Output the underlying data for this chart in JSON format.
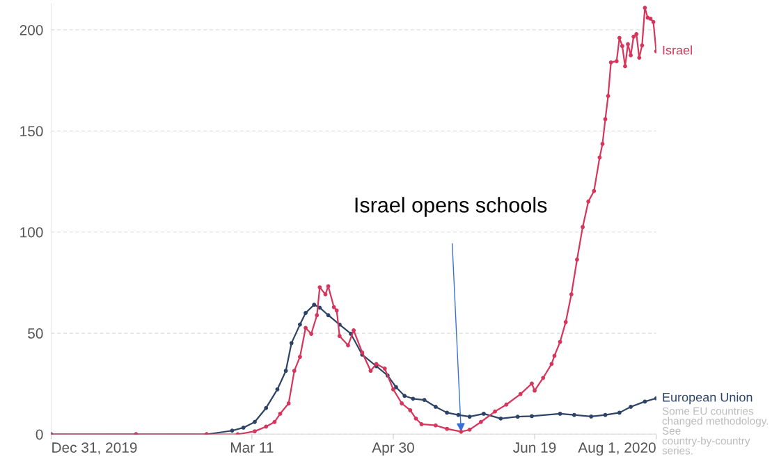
{
  "chart_data": {
    "type": "line",
    "xlim": [
      "2019-12-31",
      "2020-08-01"
    ],
    "xticks": [
      {
        "value": "2019-12-31",
        "label": "Dec 31, 2019"
      },
      {
        "value": "2020-03-11",
        "label": "Mar 11"
      },
      {
        "value": "2020-04-30",
        "label": "Apr 30"
      },
      {
        "value": "2020-06-19",
        "label": "Jun 19"
      },
      {
        "value": "2020-08-01",
        "label": "Aug 1, 2020"
      }
    ],
    "ylim": [
      0,
      213
    ],
    "yticks": [
      0,
      50,
      100,
      150,
      200
    ],
    "grid": "y",
    "marker": "circle",
    "line_style": "solid",
    "legend": false,
    "series": [
      {
        "name": "Israel",
        "color": "#d6365c",
        "x": [
          "2019-12-31",
          "2020-01-30",
          "2020-02-24",
          "2020-03-06",
          "2020-03-12",
          "2020-03-16",
          "2020-03-19",
          "2020-03-21",
          "2020-03-24",
          "2020-03-26",
          "2020-03-28",
          "2020-03-30",
          "2020-04-01",
          "2020-04-03",
          "2020-04-04",
          "2020-04-06",
          "2020-04-07",
          "2020-04-09",
          "2020-04-10",
          "2020-04-11",
          "2020-04-14",
          "2020-04-16",
          "2020-04-19",
          "2020-04-22",
          "2020-04-24",
          "2020-04-27",
          "2020-04-30",
          "2020-05-03",
          "2020-05-06",
          "2020-05-08",
          "2020-05-10",
          "2020-05-15",
          "2020-05-19",
          "2020-05-24",
          "2020-05-27",
          "2020-05-31",
          "2020-06-05",
          "2020-06-09",
          "2020-06-14",
          "2020-06-18",
          "2020-06-19",
          "2020-06-22",
          "2020-06-25",
          "2020-06-26",
          "2020-06-28",
          "2020-06-30",
          "2020-07-02",
          "2020-07-04",
          "2020-07-06",
          "2020-07-08",
          "2020-07-10",
          "2020-07-12",
          "2020-07-13",
          "2020-07-14",
          "2020-07-15",
          "2020-07-16",
          "2020-07-18",
          "2020-07-19",
          "2020-07-20",
          "2020-07-21",
          "2020-07-22",
          "2020-07-23",
          "2020-07-24",
          "2020-07-25",
          "2020-07-26",
          "2020-07-27",
          "2020-07-28",
          "2020-07-29",
          "2020-07-30",
          "2020-07-31",
          "2020-08-01"
        ],
        "values": [
          0,
          0,
          0,
          0,
          1.5,
          3.8,
          6.1,
          10.2,
          15.3,
          31.4,
          38.3,
          52.6,
          49.7,
          58.9,
          72.7,
          69.2,
          73.2,
          62.9,
          61.2,
          48.6,
          44.0,
          51.4,
          40.5,
          31.4,
          34.8,
          32.5,
          22.2,
          15.3,
          11.9,
          7.8,
          5.0,
          4.4,
          2.7,
          1.3,
          2.3,
          6.1,
          11.3,
          14.7,
          19.9,
          25.1,
          21.6,
          27.9,
          34.8,
          38.8,
          45.7,
          55.5,
          69.2,
          86.4,
          102.5,
          115.1,
          120.3,
          136.9,
          143.6,
          155.8,
          167.3,
          183.9,
          184.5,
          196,
          192,
          182,
          192.9,
          187.4,
          196.6,
          197.9,
          186.2,
          192.3,
          210.9,
          206,
          205.5,
          203.9,
          189.4
        ]
      },
      {
        "name": "European Union",
        "color": "#2e4466",
        "x": [
          "2019-12-31",
          "2020-01-30",
          "2020-02-24",
          "2020-03-04",
          "2020-03-08",
          "2020-03-12",
          "2020-03-16",
          "2020-03-20",
          "2020-03-23",
          "2020-03-25",
          "2020-03-28",
          "2020-03-30",
          "2020-04-02",
          "2020-04-04",
          "2020-04-07",
          "2020-04-11",
          "2020-04-15",
          "2020-04-19",
          "2020-04-24",
          "2020-04-28",
          "2020-05-01",
          "2020-05-04",
          "2020-05-07",
          "2020-05-11",
          "2020-05-15",
          "2020-05-19",
          "2020-05-23",
          "2020-05-27",
          "2020-06-01",
          "2020-06-07",
          "2020-06-13",
          "2020-06-18",
          "2020-06-28",
          "2020-07-03",
          "2020-07-09",
          "2020-07-14",
          "2020-07-19",
          "2020-07-23",
          "2020-07-28",
          "2020-08-01"
        ],
        "values": [
          0,
          0,
          0,
          1.8,
          3.3,
          6.1,
          13.0,
          22.2,
          31.4,
          45.1,
          54.3,
          60.0,
          64.1,
          62.6,
          58.9,
          54.3,
          49.7,
          39.4,
          33.7,
          29.1,
          23.3,
          19.0,
          17.6,
          17.0,
          13.6,
          10.7,
          9.6,
          8.7,
          10.2,
          7.8,
          8.7,
          9.0,
          10.2,
          9.6,
          8.8,
          9.6,
          10.7,
          13.6,
          16.2,
          17.8
        ]
      }
    ],
    "annotations": [
      {
        "text": "Israel opens schools",
        "x": "2020-05-24",
        "y": 1.3
      },
      "Some EU countries changed methodology. See country-by-country series."
    ]
  }
}
